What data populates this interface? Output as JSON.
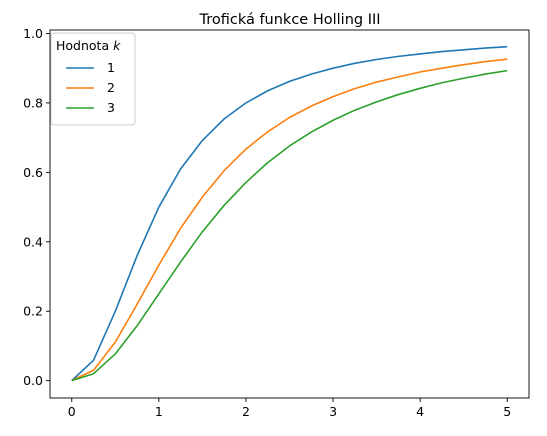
{
  "chart_data": {
    "type": "line",
    "title": "Trofická funkce Holling III",
    "xlabel": "",
    "ylabel": "",
    "xlim": [
      -0.25,
      5.25
    ],
    "ylim": [
      -0.05,
      1.01
    ],
    "x_ticks": [
      0,
      1,
      2,
      3,
      4,
      5
    ],
    "x_tick_labels": [
      "0",
      "1",
      "2",
      "3",
      "4",
      "5"
    ],
    "y_ticks": [
      0.0,
      0.2,
      0.4,
      0.6,
      0.8,
      1.0
    ],
    "y_tick_labels": [
      "0.0",
      "0.2",
      "0.4",
      "0.6",
      "0.8",
      "1.0"
    ],
    "grid": false,
    "legend": {
      "title_prefix": "Hodnota ",
      "title_var": "k",
      "placement": "top-left"
    },
    "x": [
      0,
      0.25,
      0.5,
      0.75,
      1,
      1.25,
      1.5,
      1.75,
      2,
      2.25,
      2.5,
      2.75,
      3,
      3.25,
      3.5,
      3.75,
      4,
      4.25,
      4.5,
      4.75,
      5
    ],
    "series": [
      {
        "name": "1",
        "color": "#1f77b4",
        "values": [
          0,
          0.059,
          0.2,
          0.36,
          0.5,
          0.61,
          0.692,
          0.754,
          0.8,
          0.835,
          0.862,
          0.883,
          0.9,
          0.914,
          0.925,
          0.934,
          0.941,
          0.948,
          0.953,
          0.958,
          0.962
        ]
      },
      {
        "name": "2",
        "color": "#ff7f0e",
        "values": [
          0,
          0.03,
          0.111,
          0.22,
          0.333,
          0.439,
          0.529,
          0.605,
          0.667,
          0.717,
          0.758,
          0.791,
          0.818,
          0.841,
          0.86,
          0.875,
          0.889,
          0.9,
          0.91,
          0.919,
          0.926
        ]
      },
      {
        "name": "3",
        "color": "#2ca02c",
        "values": [
          0,
          0.02,
          0.077,
          0.158,
          0.25,
          0.342,
          0.429,
          0.505,
          0.571,
          0.628,
          0.676,
          0.716,
          0.75,
          0.779,
          0.803,
          0.824,
          0.842,
          0.858,
          0.871,
          0.883,
          0.893
        ]
      }
    ]
  }
}
